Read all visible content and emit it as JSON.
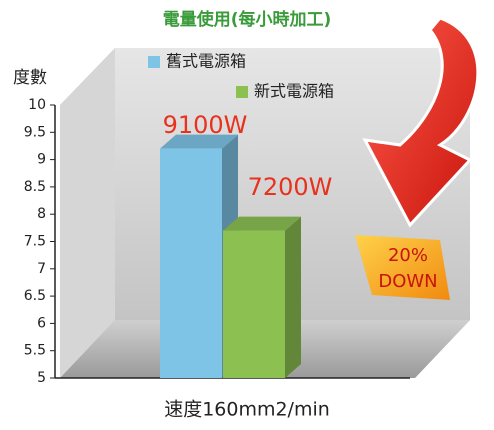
{
  "chart_data": {
    "type": "bar3d",
    "title": "電量使用(每小時加工)",
    "ylabel": "度數",
    "xlabel": "速度160mm2/min",
    "categories": [
      null
    ],
    "series": [
      {
        "name": "舊式電源箱",
        "color": "#7ec4e6",
        "values": [
          9.2
        ]
      },
      {
        "name": "新式電源箱",
        "color": "#8cc152",
        "values": [
          7.7
        ]
      }
    ],
    "ylim": [
      5,
      10
    ],
    "yticks": [
      5,
      5.5,
      6,
      6.5,
      7,
      7.5,
      8,
      8.5,
      9,
      9.5,
      10
    ],
    "annotations": [
      "9100W",
      "7200W",
      "20%",
      "DOWN"
    ]
  }
}
